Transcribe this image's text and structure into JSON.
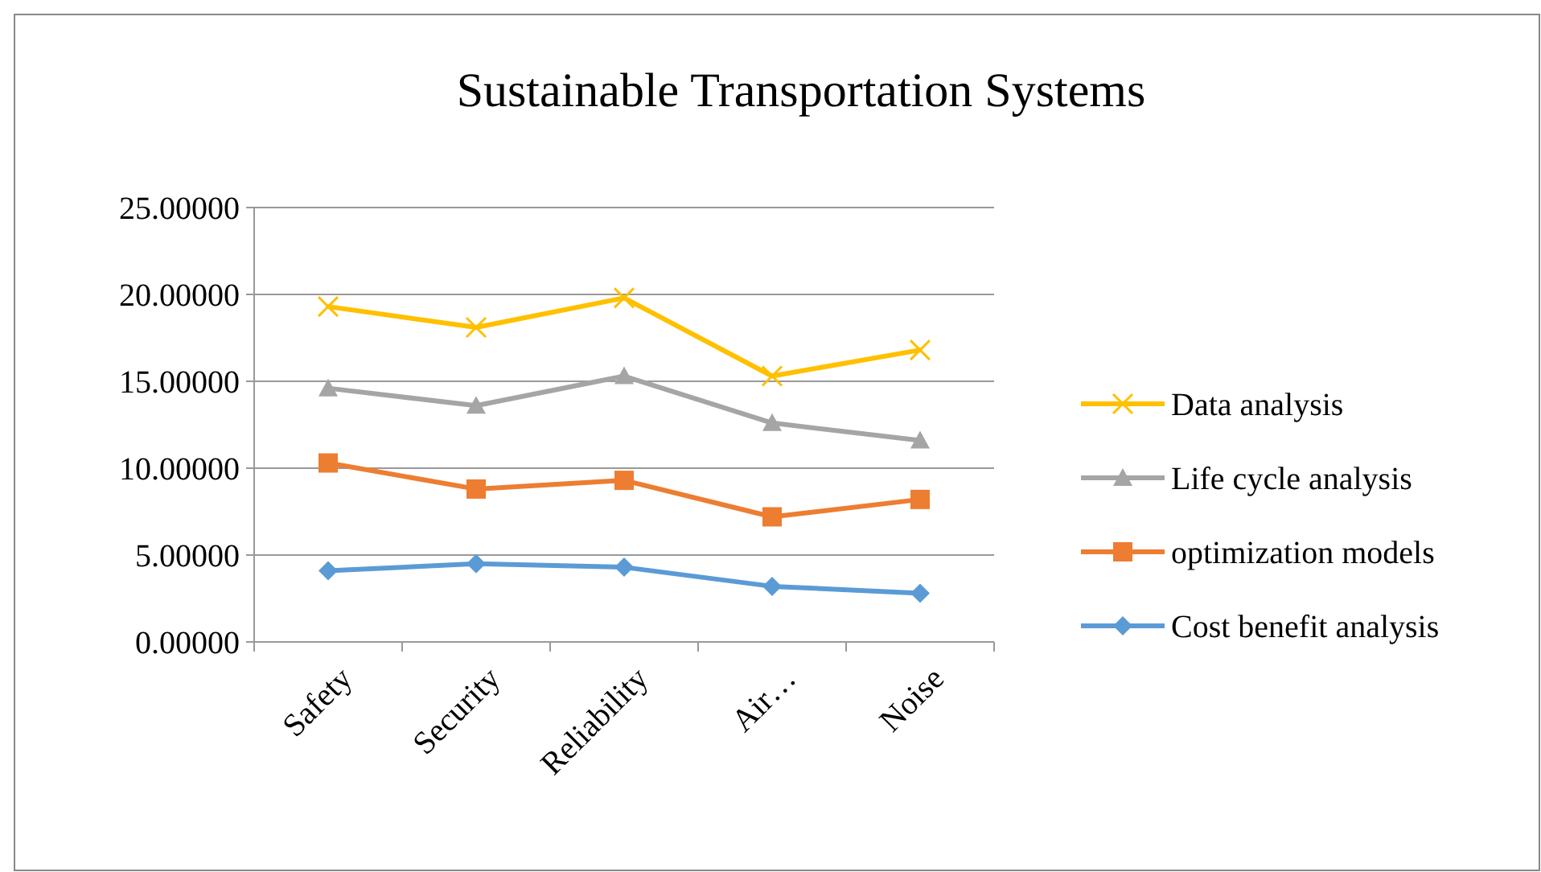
{
  "chart_data": {
    "type": "line",
    "title": "Sustainable Transportation Systems",
    "categories": [
      "Safety",
      "Security",
      "Reliability",
      "Air…",
      "Noise"
    ],
    "series": [
      {
        "name": "Data analysis",
        "color": "#ffc000",
        "marker": "cross",
        "values": [
          19.3,
          18.1,
          19.8,
          15.3,
          16.8
        ]
      },
      {
        "name": "Life cycle analysis",
        "color": "#a5a5a5",
        "marker": "triangle",
        "values": [
          14.6,
          13.6,
          15.3,
          12.6,
          11.6
        ]
      },
      {
        "name": "optimization models",
        "color": "#ed7d31",
        "marker": "square",
        "values": [
          10.3,
          8.8,
          9.3,
          7.2,
          8.2
        ]
      },
      {
        "name": "Cost benefit analysis",
        "color": "#5b9bd5",
        "marker": "diamond",
        "values": [
          4.1,
          4.5,
          4.3,
          3.2,
          2.8
        ]
      }
    ],
    "ylim": [
      0,
      25
    ],
    "yticks": [
      {
        "value": 0,
        "label": "0.00000"
      },
      {
        "value": 5,
        "label": "5.00000"
      },
      {
        "value": 10,
        "label": "10.00000"
      },
      {
        "value": 15,
        "label": "15.00000"
      },
      {
        "value": 20,
        "label": "20.00000"
      },
      {
        "value": 25,
        "label": "25.00000"
      }
    ],
    "grid": "y",
    "legend": "right"
  }
}
